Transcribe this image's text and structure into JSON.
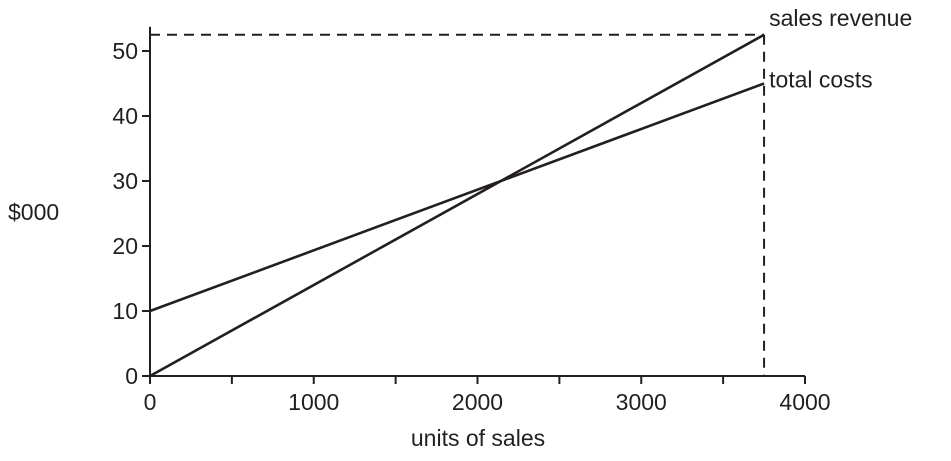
{
  "chart_data": {
    "type": "line",
    "title": "",
    "xlabel": "units of sales",
    "ylabel": "$000",
    "xlim": [
      0,
      4000
    ],
    "ylim": [
      0,
      52
    ],
    "x_ticks": [
      0,
      1000,
      2000,
      3000,
      4000
    ],
    "x_minor_ticks": [
      500,
      1500,
      2500,
      3500
    ],
    "y_ticks": [
      0,
      10,
      20,
      30,
      40,
      50
    ],
    "grid": false,
    "legend": "none",
    "series": [
      {
        "name": "sales revenue",
        "x": [
          0,
          3750
        ],
        "y": [
          0,
          52.5
        ]
      },
      {
        "name": "total costs",
        "x": [
          0,
          3750
        ],
        "y": [
          10,
          45
        ]
      }
    ],
    "annotations": {
      "dashed_max_x": 3750,
      "dashed_top_y": 52.5
    },
    "colors": {
      "line": "#231f20",
      "background": "#ffffff"
    }
  }
}
